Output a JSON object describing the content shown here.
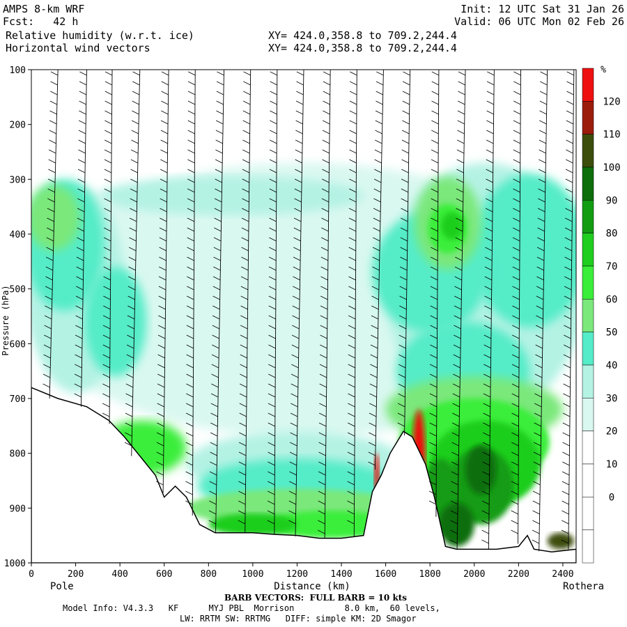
{
  "header": {
    "model": "AMPS 8-km WRF",
    "fcst": "Fcst:   42 h",
    "init": "Init: 12 UTC Sat 31 Jan 26",
    "valid": "Valid: 06 UTC Mon 02 Feb 26",
    "field1": "Relative humidity (w.r.t. ice)",
    "field2": "Horizontal wind vectors",
    "xy1": "XY= 424.0,358.8 to 709.2,244.4",
    "xy2": "XY= 424.0,358.8 to 709.2,244.4"
  },
  "footer": {
    "barb": "BARB VECTORS:  FULL BARB = 10 kts",
    "info1": "Model Info: V4.3.3   KF      MYJ PBL  Morrison          8.0 km,  60 levels,",
    "info2": "LW: RRTM SW: RRTMG   DIFF: simple KM: 2D Smagor"
  },
  "colors": {
    "c30": "#d9f8f0",
    "c40": "#b4f2e4",
    "c50": "#55ecc8",
    "c60": "#7ae87a",
    "c70": "#3aee3a",
    "c80": "#1fce1f",
    "c90": "#129c12",
    "c100": "#0b6e0b",
    "c110": "#3c4e0c",
    "c120": "#9c1c0c",
    "c130": "#ee1010",
    "terrain": "#ffffff"
  },
  "chart_data": {
    "type": "cross-section contour",
    "xlabel": "Distance (km)",
    "ylabel": "Pressure (hPa)",
    "xlim": [
      0,
      2460
    ],
    "ylim": [
      1000,
      100
    ],
    "x_ticks": [
      0,
      200,
      400,
      600,
      800,
      1000,
      1200,
      1400,
      1600,
      1800,
      2000,
      2200,
      2400
    ],
    "y_ticks": [
      100,
      200,
      300,
      400,
      500,
      600,
      700,
      800,
      900,
      1000
    ],
    "left_end": "Pole",
    "right_end": "Rothera",
    "colorbar": {
      "unit": "%",
      "levels": [
        0,
        10,
        20,
        30,
        40,
        50,
        60,
        70,
        80,
        90,
        100,
        110,
        120
      ],
      "colors": [
        "#ffffff",
        "#ffffff",
        "#ffffff",
        "#ffffff",
        "#d9f8f0",
        "#b4f2e4",
        "#55ecc8",
        "#7ae87a",
        "#3aee3a",
        "#1fce1f",
        "#129c12",
        "#0b6e0b",
        "#3c4e0c",
        "#9c1c0c",
        "#ee1010"
      ]
    },
    "terrain_surface_hPa": [
      [
        0,
        680
      ],
      [
        120,
        700
      ],
      [
        250,
        715
      ],
      [
        350,
        740
      ],
      [
        420,
        770
      ],
      [
        500,
        810
      ],
      [
        560,
        840
      ],
      [
        600,
        880
      ],
      [
        650,
        860
      ],
      [
        700,
        880
      ],
      [
        760,
        930
      ],
      [
        830,
        945
      ],
      [
        900,
        945
      ],
      [
        1000,
        945
      ],
      [
        1100,
        948
      ],
      [
        1200,
        950
      ],
      [
        1300,
        955
      ],
      [
        1400,
        955
      ],
      [
        1500,
        950
      ],
      [
        1540,
        870
      ],
      [
        1580,
        840
      ],
      [
        1620,
        800
      ],
      [
        1680,
        760
      ],
      [
        1720,
        770
      ],
      [
        1780,
        820
      ],
      [
        1820,
        880
      ],
      [
        1870,
        970
      ],
      [
        1920,
        975
      ],
      [
        2000,
        975
      ],
      [
        2100,
        975
      ],
      [
        2200,
        970
      ],
      [
        2240,
        950
      ],
      [
        2270,
        975
      ],
      [
        2350,
        980
      ],
      [
        2460,
        975
      ]
    ],
    "barb_columns_km": [
      120,
      250,
      365,
      490,
      620,
      740,
      870,
      990,
      1110,
      1230,
      1350,
      1470,
      1590,
      1710,
      1840,
      1960,
      2090,
      2210,
      2330,
      2450
    ]
  }
}
